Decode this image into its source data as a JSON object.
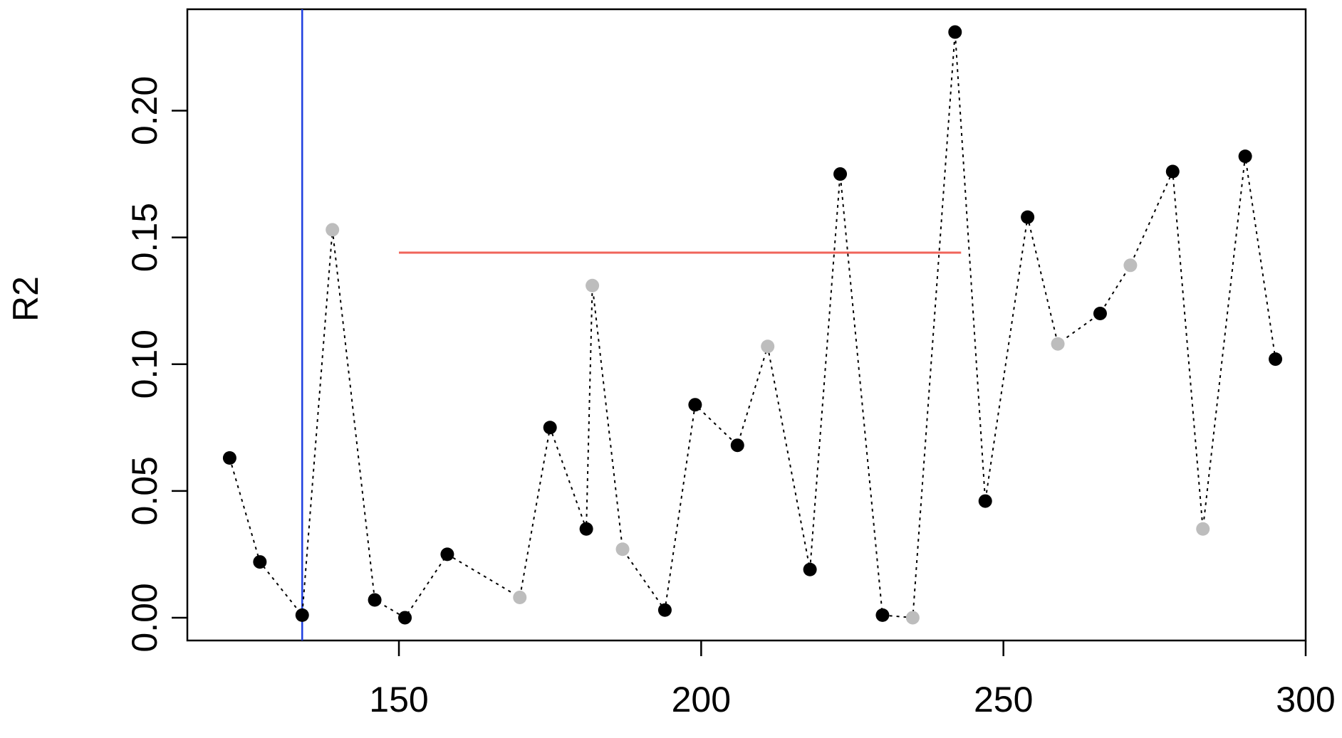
{
  "chart_data": {
    "type": "scatter",
    "title": "",
    "xlabel": "",
    "ylabel": "R2",
    "xlim": [
      115,
      300
    ],
    "ylim": [
      -0.009,
      0.24
    ],
    "x_ticks": [
      150,
      200,
      250,
      300
    ],
    "y_ticks": [
      0.0,
      0.05,
      0.1,
      0.15,
      0.2
    ],
    "x_tick_labels": [
      "150",
      "200",
      "250",
      "300"
    ],
    "y_tick_labels": [
      "0.00",
      "0.05",
      "0.10",
      "0.15",
      "0.20"
    ],
    "grid": false,
    "connector": {
      "style": "dotted",
      "color": "#000000"
    },
    "point_colors": {
      "black": "#000000",
      "gray": "#bdbdbd"
    },
    "points": [
      {
        "x": 122,
        "y": 0.063,
        "color": "black"
      },
      {
        "x": 127,
        "y": 0.022,
        "color": "black"
      },
      {
        "x": 134,
        "y": 0.001,
        "color": "black"
      },
      {
        "x": 139,
        "y": 0.153,
        "color": "gray"
      },
      {
        "x": 146,
        "y": 0.007,
        "color": "black"
      },
      {
        "x": 151,
        "y": 0.0,
        "color": "black"
      },
      {
        "x": 158,
        "y": 0.025,
        "color": "black"
      },
      {
        "x": 170,
        "y": 0.008,
        "color": "gray"
      },
      {
        "x": 175,
        "y": 0.075,
        "color": "black"
      },
      {
        "x": 181,
        "y": 0.035,
        "color": "black"
      },
      {
        "x": 182,
        "y": 0.131,
        "color": "gray"
      },
      {
        "x": 187,
        "y": 0.027,
        "color": "gray"
      },
      {
        "x": 194,
        "y": 0.003,
        "color": "black"
      },
      {
        "x": 199,
        "y": 0.084,
        "color": "black"
      },
      {
        "x": 206,
        "y": 0.068,
        "color": "black"
      },
      {
        "x": 211,
        "y": 0.107,
        "color": "gray"
      },
      {
        "x": 218,
        "y": 0.019,
        "color": "black"
      },
      {
        "x": 223,
        "y": 0.175,
        "color": "black"
      },
      {
        "x": 230,
        "y": 0.001,
        "color": "black"
      },
      {
        "x": 235,
        "y": 0.0,
        "color": "gray"
      },
      {
        "x": 242,
        "y": 0.231,
        "color": "black"
      },
      {
        "x": 247,
        "y": 0.046,
        "color": "black"
      },
      {
        "x": 254,
        "y": 0.158,
        "color": "black"
      },
      {
        "x": 259,
        "y": 0.108,
        "color": "gray"
      },
      {
        "x": 266,
        "y": 0.12,
        "color": "black"
      },
      {
        "x": 271,
        "y": 0.139,
        "color": "gray"
      },
      {
        "x": 278,
        "y": 0.176,
        "color": "black"
      },
      {
        "x": 283,
        "y": 0.035,
        "color": "gray"
      },
      {
        "x": 290,
        "y": 0.182,
        "color": "black"
      },
      {
        "x": 295,
        "y": 0.102,
        "color": "black"
      }
    ],
    "reference_lines": {
      "vertical": {
        "x": 134,
        "color": "#1f3fe0"
      },
      "horizontal": {
        "y": 0.144,
        "x_from": 150,
        "x_to": 243,
        "color": "#f0645a"
      }
    }
  }
}
